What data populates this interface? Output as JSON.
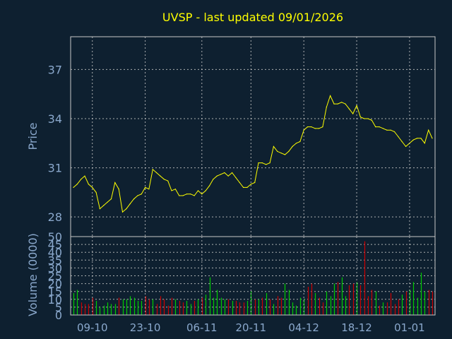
{
  "chart_data": {
    "title": "UVSP - last updated 09/01/2026",
    "colors": {
      "background": "#0e2030",
      "title": "#ffff00",
      "price_line": "#ffff00",
      "volume_up": "#00cc00",
      "volume_down": "#cc0000",
      "axis_text": "#8aa8cc",
      "grid": "#c8c8c8"
    },
    "price_panel": {
      "type": "line",
      "ylabel": "Price",
      "ylim": [
        26.8,
        39.0
      ],
      "yticks": [
        "37",
        "34",
        "31",
        "28"
      ],
      "ytick_values": [
        37,
        34,
        31,
        28
      ],
      "grid": true,
      "series": [
        {
          "values": [
            29.8,
            30.0,
            30.3,
            30.5,
            30.0,
            29.8,
            29.5,
            28.5,
            28.7,
            28.9,
            29.1,
            30.1,
            29.7,
            28.3,
            28.5,
            28.8,
            29.1,
            29.3,
            29.4,
            29.8,
            29.7,
            30.9,
            30.7,
            30.5,
            30.3,
            30.2,
            29.6,
            29.7,
            29.3,
            29.3,
            29.4,
            29.4,
            29.3,
            29.6,
            29.4,
            29.6,
            29.9,
            30.3,
            30.5,
            30.6,
            30.7,
            30.5,
            30.7,
            30.4,
            30.1,
            29.8,
            29.8,
            30.0,
            30.1,
            31.3,
            31.3,
            31.2,
            31.3,
            32.3,
            32.0,
            31.9,
            31.8,
            32.0,
            32.3,
            32.5,
            32.6,
            33.3,
            33.5,
            33.5,
            33.4,
            33.4,
            33.5,
            34.7,
            35.4,
            34.9,
            34.9,
            35.0,
            34.9,
            34.6,
            34.3,
            34.8,
            34.1,
            34.0,
            34.0,
            33.9,
            33.5,
            33.5,
            33.4,
            33.3,
            33.3,
            33.2,
            32.9,
            32.6,
            32.3,
            32.5,
            32.7,
            32.8,
            32.8,
            32.5,
            33.3,
            32.8
          ]
        }
      ]
    },
    "volume_panel": {
      "type": "bar",
      "ylabel": "Volume (0000)",
      "ylim": [
        0,
        50
      ],
      "yticks": [
        "50",
        "45",
        "40",
        "35",
        "30",
        "25",
        "20",
        "15",
        "10",
        "5",
        "0"
      ],
      "ytick_values": [
        50,
        45,
        40,
        35,
        30,
        25,
        20,
        15,
        10,
        5,
        0
      ],
      "grid": true,
      "values": [
        14,
        16,
        8,
        7,
        7,
        11,
        9,
        5,
        6,
        8,
        7,
        7,
        11,
        10,
        10,
        12,
        11,
        9,
        9,
        12,
        10,
        10,
        7,
        12,
        10,
        6,
        11,
        10,
        9,
        8,
        9,
        7,
        9,
        10,
        11,
        13,
        24,
        11,
        16,
        11,
        10,
        10,
        9,
        9,
        8,
        8,
        9,
        15,
        10,
        10,
        11,
        14,
        10,
        7,
        12,
        11,
        20,
        16,
        8,
        6,
        11,
        10,
        18,
        20,
        14,
        11,
        8,
        15,
        12,
        20,
        21,
        24,
        12,
        19,
        20,
        21,
        19,
        47,
        12,
        16,
        15,
        6,
        8,
        8,
        14,
        7,
        10,
        13,
        15,
        16,
        21,
        11,
        27,
        15,
        16,
        15
      ],
      "up": [
        true,
        true,
        false,
        false,
        false,
        false,
        true,
        true,
        true,
        true,
        true,
        true,
        false,
        true,
        true,
        true,
        true,
        true,
        true,
        false,
        false,
        true,
        false,
        false,
        false,
        false,
        false,
        true,
        false,
        false,
        true,
        true,
        false,
        true,
        false,
        true,
        true,
        true,
        true,
        true,
        true,
        false,
        true,
        false,
        false,
        false,
        true,
        true,
        false,
        true,
        false,
        true,
        false,
        true,
        false,
        false,
        true,
        true,
        true,
        true,
        true,
        true,
        false,
        false,
        true,
        false,
        false,
        true,
        true,
        true,
        false,
        true,
        true,
        false,
        false,
        true,
        false,
        false,
        false,
        false,
        true,
        false,
        true,
        false,
        false,
        false,
        false,
        true,
        false,
        true,
        true,
        true,
        true,
        true,
        false,
        false
      ]
    },
    "x_axis": {
      "ticks": [
        {
          "label": "09-10",
          "index": 5
        },
        {
          "label": "23-10",
          "index": 19
        },
        {
          "label": "06-11",
          "index": 34
        },
        {
          "label": "20-11",
          "index": 47
        },
        {
          "label": "04-12",
          "index": 61
        },
        {
          "label": "18-12",
          "index": 75
        },
        {
          "label": "01-01",
          "index": 89
        }
      ]
    }
  }
}
